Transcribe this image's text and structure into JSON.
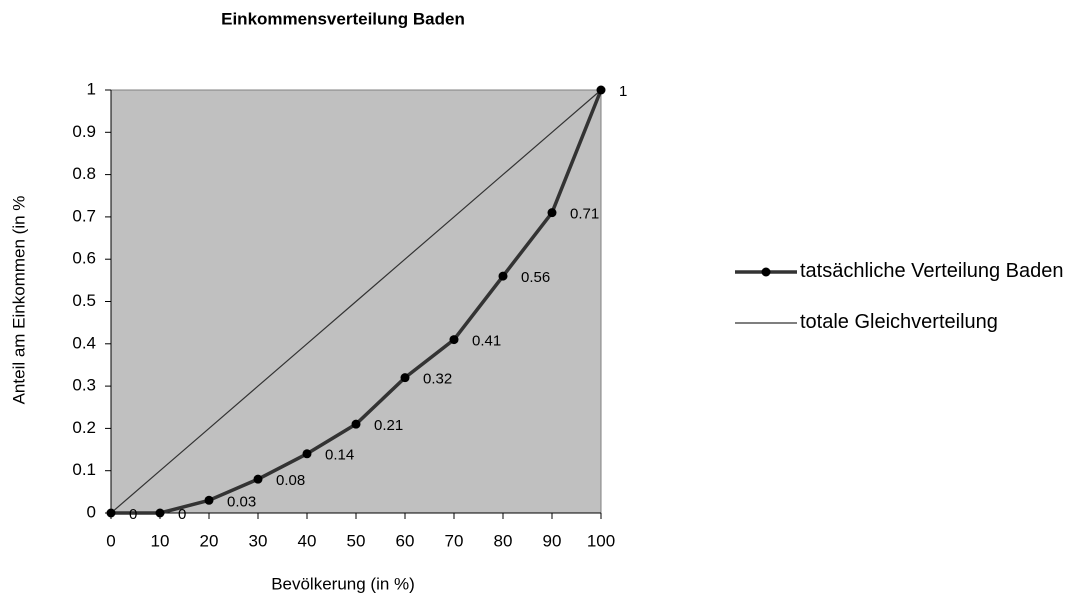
{
  "chart_data": {
    "type": "line",
    "title": "Einkommensverteilung Baden",
    "x_label": "Bevölkerung (in %)",
    "y_label": "Anteil am Einkommen (in %",
    "x": [
      0,
      10,
      20,
      30,
      40,
      50,
      60,
      70,
      80,
      90,
      100
    ],
    "series": [
      {
        "name": "tatsächliche Verteilung Baden",
        "color": "#333333",
        "marker": "circle",
        "show_labels": true,
        "values": [
          0,
          0,
          0.03,
          0.08,
          0.14,
          0.21,
          0.32,
          0.41,
          0.56,
          0.71,
          1
        ]
      },
      {
        "name": "totale Gleichverteilung",
        "color": "#333333",
        "marker": "none",
        "show_labels": false,
        "values": [
          0,
          0.1,
          0.2,
          0.3,
          0.4,
          0.5,
          0.6,
          0.7,
          0.8,
          0.9,
          1
        ]
      }
    ],
    "xlim": [
      0,
      100
    ],
    "xticks": [
      0,
      10,
      20,
      30,
      40,
      50,
      60,
      70,
      80,
      90,
      100
    ],
    "ylim": [
      0,
      1
    ],
    "yticks": [
      0,
      0.1,
      0.2,
      0.3,
      0.4,
      0.5,
      0.6,
      0.7,
      0.8,
      0.9,
      1
    ],
    "plot_background": "#c0c0c0",
    "grid": false,
    "legend": "right"
  }
}
